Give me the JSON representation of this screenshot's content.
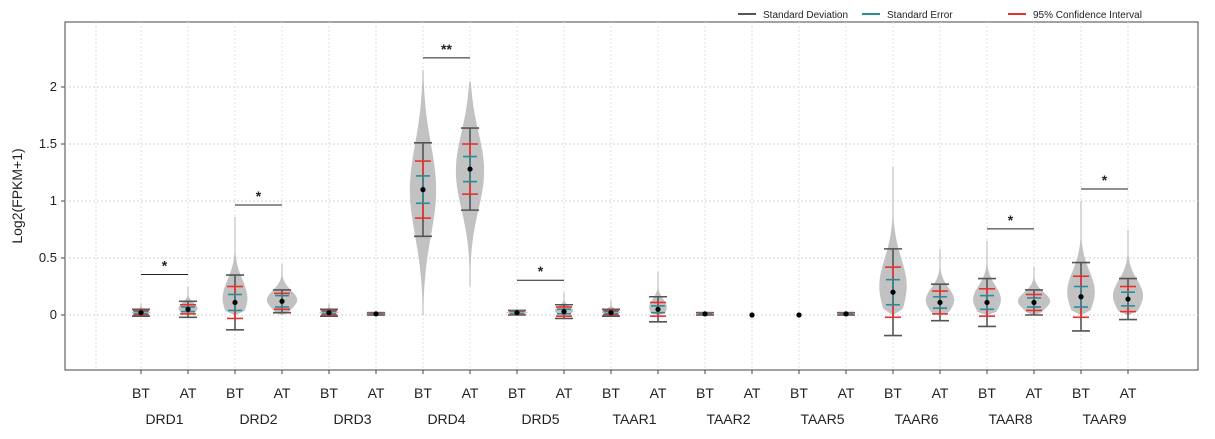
{
  "chart_data": {
    "type": "violin",
    "ylabel": "Log2(FPKM+1)",
    "ylim": [
      -0.45,
      2.5
    ],
    "yticks": [
      0,
      0.5,
      1,
      1.5,
      2
    ],
    "ytick_labels": [
      "0",
      "0.5",
      "1",
      "1.5",
      "2"
    ],
    "grid": true,
    "legend_position": "top-right",
    "legend": [
      {
        "label": "Standard Deviation",
        "color": "#555555"
      },
      {
        "label": "Standard Error",
        "color": "#2a8c96"
      },
      {
        "label": "95% Confidence Interval",
        "color": "#e8312f"
      }
    ],
    "colors": {
      "violin": "#c2c2c2",
      "sd": "#555555",
      "se": "#2a8c96",
      "ci": "#e8312f",
      "mean": "#000000"
    },
    "genes": [
      {
        "name": "DRD1",
        "sig": "*",
        "groups": [
          {
            "cond": "BT",
            "mean": 0.02,
            "sd": 0.03,
            "se": 0.01,
            "ci": 0.02,
            "vmin": 0.0,
            "vmax": 0.1,
            "vwidth": 0.5
          },
          {
            "cond": "AT",
            "mean": 0.05,
            "sd": 0.07,
            "se": 0.02,
            "ci": 0.04,
            "vmin": 0.0,
            "vmax": 0.25,
            "vwidth": 0.5
          }
        ]
      },
      {
        "name": "DRD2",
        "sig": "*",
        "groups": [
          {
            "cond": "BT",
            "mean": 0.11,
            "sd": 0.24,
            "se": 0.07,
            "ci": 0.14,
            "vmin": 0.0,
            "vmax": 0.86,
            "vwidth": 0.7
          },
          {
            "cond": "AT",
            "mean": 0.12,
            "sd": 0.1,
            "se": 0.05,
            "ci": 0.07,
            "vmin": 0.0,
            "vmax": 0.45,
            "vwidth": 0.75
          }
        ]
      },
      {
        "name": "DRD3",
        "sig": "",
        "groups": [
          {
            "cond": "BT",
            "mean": 0.02,
            "sd": 0.03,
            "se": 0.01,
            "ci": 0.02,
            "vmin": 0.0,
            "vmax": 0.1,
            "vwidth": 0.5
          },
          {
            "cond": "AT",
            "mean": 0.01,
            "sd": 0.01,
            "se": 0.005,
            "ci": 0.01,
            "vmin": 0.0,
            "vmax": 0.03,
            "vwidth": 0.5
          }
        ]
      },
      {
        "name": "DRD4",
        "sig": "**",
        "groups": [
          {
            "cond": "BT",
            "mean": 1.1,
            "sd": 0.41,
            "se": 0.12,
            "ci": 0.25,
            "vmin": 0.0,
            "vmax": 2.15,
            "vwidth": 0.6
          },
          {
            "cond": "AT",
            "mean": 1.28,
            "sd": 0.36,
            "se": 0.11,
            "ci": 0.22,
            "vmin": 0.25,
            "vmax": 2.05,
            "vwidth": 0.65
          }
        ]
      },
      {
        "name": "DRD5",
        "sig": "*",
        "groups": [
          {
            "cond": "BT",
            "mean": 0.02,
            "sd": 0.02,
            "se": 0.01,
            "ci": 0.015,
            "vmin": 0.0,
            "vmax": 0.05,
            "vwidth": 0.5
          },
          {
            "cond": "AT",
            "mean": 0.03,
            "sd": 0.06,
            "se": 0.02,
            "ci": 0.04,
            "vmin": 0.0,
            "vmax": 0.2,
            "vwidth": 0.5
          }
        ]
      },
      {
        "name": "TAAR1",
        "sig": "",
        "groups": [
          {
            "cond": "BT",
            "mean": 0.02,
            "sd": 0.03,
            "se": 0.01,
            "ci": 0.02,
            "vmin": 0.0,
            "vmax": 0.13,
            "vwidth": 0.5
          },
          {
            "cond": "AT",
            "mean": 0.05,
            "sd": 0.11,
            "se": 0.03,
            "ci": 0.06,
            "vmin": 0.0,
            "vmax": 0.38,
            "vwidth": 0.5
          }
        ]
      },
      {
        "name": "TAAR2",
        "sig": "",
        "groups": [
          {
            "cond": "BT",
            "mean": 0.01,
            "sd": 0.01,
            "se": 0.005,
            "ci": 0.01,
            "vmin": 0.0,
            "vmax": 0.03,
            "vwidth": 0.4
          },
          {
            "cond": "AT",
            "mean": 0.0,
            "sd": 0.0,
            "se": 0.0,
            "ci": 0.0,
            "vmin": 0.0,
            "vmax": 0.0,
            "vwidth": 0.0
          }
        ]
      },
      {
        "name": "TAAR5",
        "sig": "",
        "groups": [
          {
            "cond": "BT",
            "mean": 0.0,
            "sd": 0.0,
            "se": 0.0,
            "ci": 0.0,
            "vmin": 0.0,
            "vmax": 0.0,
            "vwidth": 0.0
          },
          {
            "cond": "AT",
            "mean": 0.01,
            "sd": 0.01,
            "se": 0.005,
            "ci": 0.01,
            "vmin": 0.0,
            "vmax": 0.03,
            "vwidth": 0.4
          }
        ]
      },
      {
        "name": "TAAR6",
        "sig": "",
        "groups": [
          {
            "cond": "BT",
            "mean": 0.2,
            "sd": 0.38,
            "se": 0.11,
            "ci": 0.22,
            "vmin": 0.0,
            "vmax": 1.3,
            "vwidth": 0.75
          },
          {
            "cond": "AT",
            "mean": 0.11,
            "sd": 0.16,
            "se": 0.05,
            "ci": 0.1,
            "vmin": 0.0,
            "vmax": 0.58,
            "vwidth": 0.75
          }
        ]
      },
      {
        "name": "TAAR8",
        "sig": "*",
        "groups": [
          {
            "cond": "BT",
            "mean": 0.11,
            "sd": 0.21,
            "se": 0.06,
            "ci": 0.12,
            "vmin": 0.0,
            "vmax": 0.65,
            "vwidth": 0.75
          },
          {
            "cond": "AT",
            "mean": 0.11,
            "sd": 0.11,
            "se": 0.04,
            "ci": 0.07,
            "vmin": 0.0,
            "vmax": 0.42,
            "vwidth": 0.8
          }
        ]
      },
      {
        "name": "TAAR9",
        "sig": "*",
        "groups": [
          {
            "cond": "BT",
            "mean": 0.16,
            "sd": 0.3,
            "se": 0.09,
            "ci": 0.18,
            "vmin": 0.0,
            "vmax": 1.0,
            "vwidth": 0.75
          },
          {
            "cond": "AT",
            "mean": 0.14,
            "sd": 0.18,
            "se": 0.06,
            "ci": 0.11,
            "vmin": 0.0,
            "vmax": 0.75,
            "vwidth": 0.8
          }
        ]
      }
    ]
  }
}
